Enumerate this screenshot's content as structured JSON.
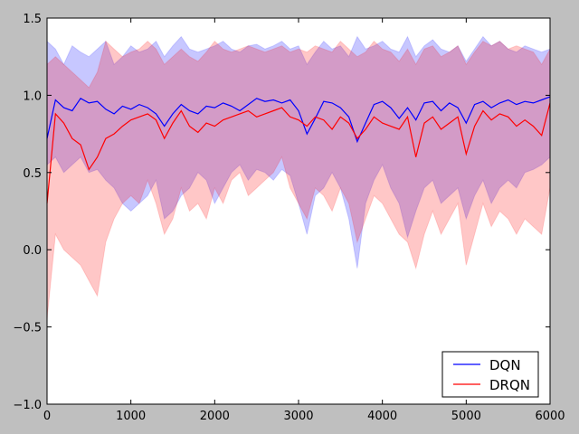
{
  "chart_data": {
    "type": "line",
    "title": "",
    "xlabel": "",
    "ylabel": "",
    "xlim": [
      0,
      6000
    ],
    "ylim": [
      -1.0,
      1.5
    ],
    "x_ticks": [
      0,
      1000,
      2000,
      3000,
      4000,
      5000,
      6000
    ],
    "x_tick_labels": [
      "0",
      "1000",
      "2000",
      "3000",
      "4000",
      "5000",
      "6000"
    ],
    "y_ticks": [
      -1.0,
      -0.5,
      0.0,
      0.5,
      1.0,
      1.5
    ],
    "y_tick_labels": [
      "−1.0",
      "−0.5",
      "0.0",
      "0.5",
      "1.0",
      "1.5"
    ],
    "grid": false,
    "legend_position": "lower-right",
    "x": [
      0,
      100,
      200,
      300,
      400,
      500,
      600,
      700,
      800,
      900,
      1000,
      1100,
      1200,
      1300,
      1400,
      1500,
      1600,
      1700,
      1800,
      1900,
      2000,
      2100,
      2200,
      2300,
      2400,
      2500,
      2600,
      2700,
      2800,
      2900,
      3000,
      3100,
      3200,
      3300,
      3400,
      3500,
      3600,
      3700,
      3800,
      3900,
      4000,
      4100,
      4200,
      4300,
      4400,
      4500,
      4600,
      4700,
      4800,
      4900,
      5000,
      5100,
      5200,
      5300,
      5400,
      5500,
      5600,
      5700,
      5800,
      5900,
      6000
    ],
    "series": [
      {
        "name": "DQN",
        "color": "#0000ff",
        "values": [
          0.72,
          0.97,
          0.92,
          0.9,
          0.98,
          0.95,
          0.96,
          0.91,
          0.88,
          0.93,
          0.91,
          0.94,
          0.92,
          0.88,
          0.8,
          0.88,
          0.94,
          0.9,
          0.88,
          0.93,
          0.92,
          0.95,
          0.93,
          0.9,
          0.94,
          0.98,
          0.96,
          0.97,
          0.95,
          0.97,
          0.9,
          0.75,
          0.85,
          0.96,
          0.95,
          0.92,
          0.86,
          0.7,
          0.82,
          0.94,
          0.96,
          0.92,
          0.85,
          0.92,
          0.84,
          0.95,
          0.96,
          0.9,
          0.95,
          0.92,
          0.82,
          0.94,
          0.96,
          0.92,
          0.95,
          0.97,
          0.94,
          0.96,
          0.95,
          0.97,
          0.99
        ],
        "band_upper": [
          1.35,
          1.3,
          1.2,
          1.32,
          1.28,
          1.25,
          1.3,
          1.35,
          1.2,
          1.25,
          1.32,
          1.28,
          1.3,
          1.35,
          1.25,
          1.32,
          1.38,
          1.3,
          1.28,
          1.3,
          1.32,
          1.35,
          1.3,
          1.28,
          1.32,
          1.33,
          1.3,
          1.32,
          1.35,
          1.3,
          1.32,
          1.2,
          1.28,
          1.35,
          1.3,
          1.32,
          1.25,
          1.38,
          1.3,
          1.32,
          1.35,
          1.3,
          1.28,
          1.38,
          1.25,
          1.32,
          1.36,
          1.3,
          1.28,
          1.32,
          1.22,
          1.3,
          1.38,
          1.32,
          1.35,
          1.3,
          1.28,
          1.32,
          1.3,
          1.28,
          1.3
        ],
        "band_lower": [
          0.55,
          0.6,
          0.5,
          0.55,
          0.6,
          0.5,
          0.52,
          0.45,
          0.4,
          0.3,
          0.25,
          0.3,
          0.35,
          0.45,
          0.2,
          0.25,
          0.35,
          0.4,
          0.5,
          0.45,
          0.3,
          0.4,
          0.5,
          0.55,
          0.45,
          0.52,
          0.5,
          0.45,
          0.52,
          0.48,
          0.3,
          0.1,
          0.35,
          0.4,
          0.5,
          0.4,
          0.2,
          -0.12,
          0.3,
          0.45,
          0.55,
          0.4,
          0.3,
          0.08,
          0.25,
          0.4,
          0.45,
          0.3,
          0.35,
          0.4,
          0.2,
          0.35,
          0.45,
          0.3,
          0.4,
          0.45,
          0.4,
          0.5,
          0.52,
          0.55,
          0.6
        ]
      },
      {
        "name": "DRQN",
        "color": "#ff0000",
        "values": [
          0.3,
          0.88,
          0.82,
          0.72,
          0.68,
          0.52,
          0.6,
          0.72,
          0.75,
          0.8,
          0.84,
          0.86,
          0.88,
          0.84,
          0.72,
          0.82,
          0.9,
          0.8,
          0.76,
          0.82,
          0.8,
          0.84,
          0.86,
          0.88,
          0.9,
          0.86,
          0.88,
          0.9,
          0.92,
          0.86,
          0.84,
          0.8,
          0.86,
          0.84,
          0.78,
          0.86,
          0.82,
          0.72,
          0.78,
          0.86,
          0.82,
          0.8,
          0.78,
          0.86,
          0.6,
          0.82,
          0.86,
          0.78,
          0.82,
          0.86,
          0.62,
          0.8,
          0.9,
          0.84,
          0.88,
          0.86,
          0.8,
          0.84,
          0.8,
          0.74,
          0.95
        ],
        "band_upper": [
          1.2,
          1.25,
          1.2,
          1.15,
          1.1,
          1.05,
          1.15,
          1.35,
          1.3,
          1.25,
          1.28,
          1.3,
          1.35,
          1.3,
          1.2,
          1.25,
          1.3,
          1.25,
          1.22,
          1.28,
          1.35,
          1.3,
          1.28,
          1.3,
          1.32,
          1.3,
          1.28,
          1.3,
          1.32,
          1.28,
          1.3,
          1.28,
          1.32,
          1.3,
          1.28,
          1.35,
          1.3,
          1.25,
          1.28,
          1.35,
          1.3,
          1.28,
          1.22,
          1.3,
          1.2,
          1.3,
          1.32,
          1.25,
          1.28,
          1.32,
          1.2,
          1.28,
          1.35,
          1.32,
          1.35,
          1.3,
          1.32,
          1.3,
          1.28,
          1.2,
          1.3
        ],
        "band_lower": [
          -0.45,
          0.1,
          0.0,
          -0.05,
          -0.1,
          -0.2,
          -0.3,
          0.05,
          0.2,
          0.3,
          0.35,
          0.3,
          0.45,
          0.3,
          0.1,
          0.2,
          0.4,
          0.25,
          0.3,
          0.2,
          0.4,
          0.3,
          0.45,
          0.5,
          0.35,
          0.4,
          0.45,
          0.5,
          0.6,
          0.4,
          0.3,
          0.2,
          0.4,
          0.35,
          0.25,
          0.4,
          0.3,
          0.05,
          0.2,
          0.35,
          0.3,
          0.2,
          0.1,
          0.05,
          -0.12,
          0.1,
          0.25,
          0.1,
          0.2,
          0.3,
          -0.1,
          0.1,
          0.3,
          0.15,
          0.25,
          0.2,
          0.1,
          0.2,
          0.15,
          0.1,
          0.4
        ]
      }
    ]
  }
}
